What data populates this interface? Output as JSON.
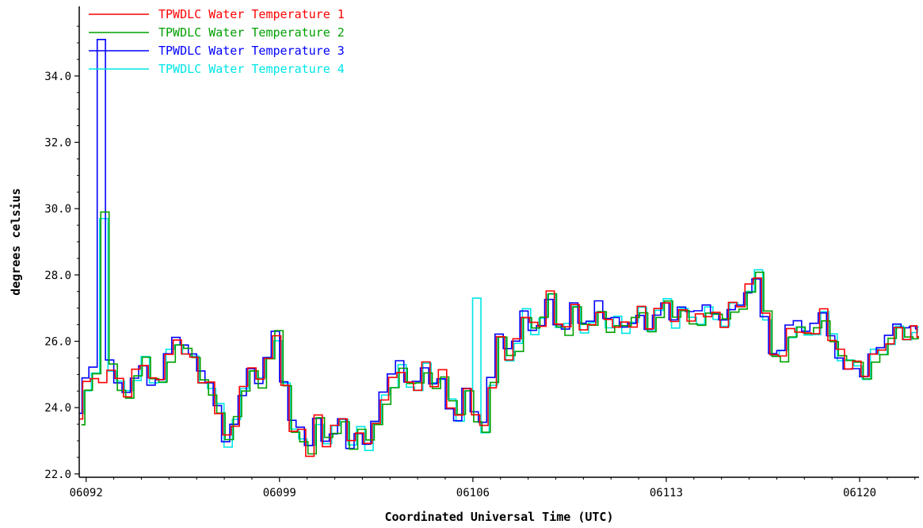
{
  "chart_data": {
    "type": "line",
    "title": "",
    "xlabel": "Coordinated Universal Time (UTC)",
    "ylabel": "degrees celsius",
    "xlim": [
      1.75,
      32.15
    ],
    "ylim": [
      21.9,
      36.1
    ],
    "x_ticks": [
      {
        "value": 2,
        "label": "06092"
      },
      {
        "value": 9,
        "label": "06099"
      },
      {
        "value": 16,
        "label": "06106"
      },
      {
        "value": 23,
        "label": "06113"
      },
      {
        "value": 30,
        "label": "06120"
      }
    ],
    "y_ticks": [
      {
        "value": 22,
        "label": "22.0"
      },
      {
        "value": 24,
        "label": "24.0"
      },
      {
        "value": 26,
        "label": "26.0"
      },
      {
        "value": 28,
        "label": "28.0"
      },
      {
        "value": 30,
        "label": "30.0"
      },
      {
        "value": 32,
        "label": "32.0"
      },
      {
        "value": 34,
        "label": "34.0"
      }
    ],
    "grid": false,
    "legend_position": "top-left",
    "series": [
      {
        "name": "TPWDLC Water Temperature 1",
        "color": "#ff0000"
      },
      {
        "name": "TPWDLC Water Temperature 2",
        "color": "#00a000"
      },
      {
        "name": "TPWDLC Water Temperature 3",
        "color": "#0000ff"
      },
      {
        "name": "TPWDLC Water Temperature 4",
        "color": "#00e5e5"
      }
    ],
    "x": [
      1.75,
      2.0,
      2.3,
      2.6,
      2.9,
      3.2,
      3.5,
      3.8,
      4.1,
      4.4,
      4.7,
      5.0,
      5.3,
      5.6,
      5.9,
      6.2,
      6.5,
      6.8,
      7.1,
      7.4,
      7.7,
      8.0,
      8.3,
      8.6,
      8.9,
      9.2,
      9.5,
      9.8,
      10.1,
      10.4,
      10.7,
      11.0,
      11.3,
      11.6,
      11.9,
      12.2,
      12.5,
      12.8,
      13.1,
      13.4,
      13.7,
      14.0,
      14.3,
      14.6,
      14.9,
      15.2,
      15.5,
      15.8,
      16.1,
      16.4,
      16.7,
      17.0,
      17.3,
      17.6,
      17.9,
      18.2,
      18.5,
      18.8,
      19.1,
      19.4,
      19.7,
      20.0,
      20.3,
      20.6,
      20.9,
      21.2,
      21.5,
      21.8,
      22.1,
      22.4,
      22.7,
      23.0,
      23.3,
      23.6,
      23.9,
      24.2,
      24.5,
      24.8,
      25.1,
      25.4,
      25.7,
      26.0,
      26.3,
      26.6,
      26.9,
      27.2,
      27.5,
      27.8,
      28.1,
      28.4,
      28.7,
      29.0,
      29.3,
      29.6,
      29.9,
      30.2,
      30.5,
      30.8,
      31.1,
      31.4,
      31.7,
      32.0,
      32.15
    ],
    "base": [
      23.7,
      24.7,
      25.0,
      24.6,
      25.3,
      24.7,
      24.5,
      25.0,
      25.4,
      24.8,
      24.9,
      25.6,
      26.0,
      25.7,
      25.4,
      24.9,
      24.6,
      24.0,
      23.0,
      23.6,
      24.5,
      25.3,
      24.8,
      25.5,
      26.2,
      24.6,
      23.4,
      23.2,
      22.7,
      23.6,
      23.0,
      23.3,
      23.8,
      22.9,
      23.3,
      22.9,
      23.5,
      24.3,
      24.8,
      25.2,
      24.6,
      24.7,
      25.2,
      24.8,
      25.0,
      24.1,
      23.7,
      24.6,
      23.8,
      23.4,
      24.7,
      26.0,
      25.6,
      25.9,
      26.9,
      26.4,
      26.6,
      27.4,
      26.6,
      26.4,
      27.1,
      26.4,
      26.4,
      27.0,
      26.5,
      26.6,
      26.4,
      26.6,
      26.9,
      26.5,
      26.9,
      27.2,
      26.6,
      26.9,
      26.7,
      26.7,
      26.9,
      26.7,
      26.6,
      27.0,
      27.2,
      27.6,
      28.0,
      26.8,
      25.6,
      25.6,
      26.3,
      26.4,
      26.1,
      26.4,
      26.8,
      26.2,
      25.6,
      25.3,
      25.3,
      25.0,
      25.6,
      25.7,
      26.0,
      26.3,
      26.2,
      26.3,
      26.3
    ],
    "spikes": [
      {
        "x": 2.6,
        "series": 2,
        "value": 35.1
      },
      {
        "x": 2.6,
        "series": 1,
        "value": 29.9
      },
      {
        "x": 2.6,
        "series": 3,
        "value": 29.7
      },
      {
        "x": 16.0,
        "series": 3,
        "value": 27.3
      }
    ]
  }
}
